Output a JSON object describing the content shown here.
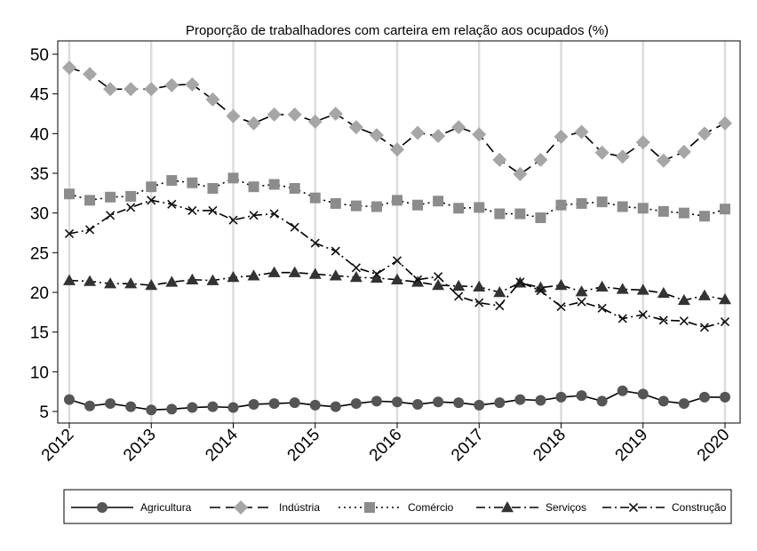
{
  "chart_data": {
    "type": "line",
    "title": "Proporção de trabalhadores com carteira em relação aos ocupados (%)",
    "xlabel": "",
    "ylabel": "",
    "ylim": [
      5,
      50
    ],
    "xlim": [
      2012,
      2020
    ],
    "y_ticks": [
      "5",
      "10",
      "15",
      "20",
      "25",
      "30",
      "35",
      "40",
      "45",
      "50"
    ],
    "x_ticks": [
      "2012",
      "2013",
      "2014",
      "2015",
      "2016",
      "2017",
      "2018",
      "2019",
      "2020"
    ],
    "grid": "vertical",
    "legend_position": "bottom",
    "x": [
      2012.0,
      2012.25,
      2012.5,
      2012.75,
      2013.0,
      2013.25,
      2013.5,
      2013.75,
      2014.0,
      2014.25,
      2014.5,
      2014.75,
      2015.0,
      2015.25,
      2015.5,
      2015.75,
      2016.0,
      2016.25,
      2016.5,
      2016.75,
      2017.0,
      2017.25,
      2017.5,
      2017.75,
      2018.0,
      2018.25,
      2018.5,
      2018.75,
      2019.0,
      2019.25,
      2019.5,
      2019.75,
      2020.0
    ],
    "series": [
      {
        "name": "Agricultura",
        "marker": "circle",
        "dash": "solid",
        "color": "#555555",
        "values": [
          6.5,
          5.7,
          6.0,
          5.6,
          5.2,
          5.3,
          5.5,
          5.6,
          5.5,
          5.9,
          6.0,
          6.1,
          5.8,
          5.6,
          6.0,
          6.3,
          6.2,
          5.9,
          6.2,
          6.1,
          5.8,
          6.1,
          6.5,
          6.4,
          6.8,
          7.0,
          6.3,
          7.6,
          7.2,
          6.3,
          6.0,
          6.8,
          6.8
        ]
      },
      {
        "name": "Indústria",
        "marker": "diamond",
        "dash": "long",
        "color": "#a6a6a6",
        "values": [
          48.3,
          47.5,
          45.6,
          45.6,
          45.6,
          46.1,
          46.2,
          44.3,
          42.2,
          41.3,
          42.4,
          42.4,
          41.5,
          42.5,
          40.8,
          39.8,
          38.0,
          40.1,
          39.7,
          40.8,
          39.9,
          36.7,
          34.9,
          36.7,
          39.6,
          40.2,
          37.6,
          37.1,
          38.9,
          36.6,
          37.7,
          40.0,
          41.3
        ]
      },
      {
        "name": "Comércio",
        "marker": "square",
        "dash": "dotted",
        "color": "#8c8c8c",
        "values": [
          32.4,
          31.6,
          32.0,
          32.1,
          33.3,
          34.1,
          33.8,
          33.1,
          34.4,
          33.3,
          33.6,
          33.1,
          31.9,
          31.2,
          30.9,
          30.8,
          31.6,
          31.0,
          31.5,
          30.6,
          30.7,
          29.9,
          29.9,
          29.4,
          31.0,
          31.2,
          31.4,
          30.8,
          30.6,
          30.2,
          30.0,
          29.6,
          30.5
        ]
      },
      {
        "name": "Serviços",
        "marker": "triangle",
        "dash": "dashdot",
        "color": "#333333",
        "values": [
          21.5,
          21.4,
          21.1,
          21.1,
          20.9,
          21.3,
          21.6,
          21.5,
          21.9,
          22.1,
          22.5,
          22.5,
          22.3,
          22.1,
          21.9,
          21.8,
          21.6,
          21.3,
          20.9,
          20.8,
          20.7,
          20.0,
          21.2,
          20.6,
          20.9,
          20.1,
          20.7,
          20.4,
          20.3,
          19.9,
          19.0,
          19.6,
          19.1
        ]
      },
      {
        "name": "Construção",
        "marker": "x",
        "dash": "dashdot",
        "color": "#111111",
        "values": [
          27.4,
          27.9,
          29.7,
          30.7,
          31.6,
          31.1,
          30.3,
          30.3,
          29.1,
          29.7,
          29.9,
          28.2,
          26.2,
          25.2,
          23.1,
          22.3,
          24.0,
          21.6,
          22.0,
          19.5,
          18.7,
          18.3,
          21.3,
          20.2,
          18.2,
          18.8,
          18.0,
          16.7,
          17.2,
          16.5,
          16.4,
          15.6,
          16.3
        ]
      }
    ]
  }
}
